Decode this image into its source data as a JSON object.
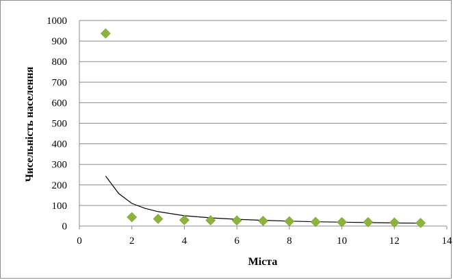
{
  "chart_data": {
    "type": "scatter",
    "title": "",
    "xlabel": "Міста",
    "ylabel": "Чисельність населення",
    "xlim": [
      0,
      14
    ],
    "ylim": [
      0,
      1000
    ],
    "xticks": [
      "0",
      "2",
      "4",
      "6",
      "8",
      "10",
      "12",
      "14"
    ],
    "yticks": [
      "0",
      "100",
      "200",
      "300",
      "400",
      "500",
      "600",
      "700",
      "800",
      "900",
      "1000"
    ],
    "grid": true,
    "legend": "none",
    "marker": "diamond",
    "marker_color": "#8db33f",
    "trendline_color": "#000000",
    "series": [
      {
        "points": [
          {
            "x": 1,
            "y": 937
          },
          {
            "x": 2,
            "y": 43
          },
          {
            "x": 3,
            "y": 35
          },
          {
            "x": 4,
            "y": 29
          },
          {
            "x": 5,
            "y": 28
          },
          {
            "x": 6,
            "y": 27
          },
          {
            "x": 7,
            "y": 25
          },
          {
            "x": 8,
            "y": 23
          },
          {
            "x": 9,
            "y": 20
          },
          {
            "x": 10,
            "y": 19
          },
          {
            "x": 11,
            "y": 19
          },
          {
            "x": 12,
            "y": 17
          },
          {
            "x": 13,
            "y": 15
          }
        ]
      }
    ],
    "trendline": {
      "type": "power",
      "x": [
        1,
        1.5,
        2,
        2.5,
        3,
        4,
        5,
        6,
        7,
        8,
        9,
        10,
        11,
        12,
        13
      ],
      "y": [
        243,
        158,
        110,
        86,
        70,
        50,
        40,
        33,
        28,
        24,
        21,
        19,
        17,
        15,
        14
      ]
    }
  }
}
